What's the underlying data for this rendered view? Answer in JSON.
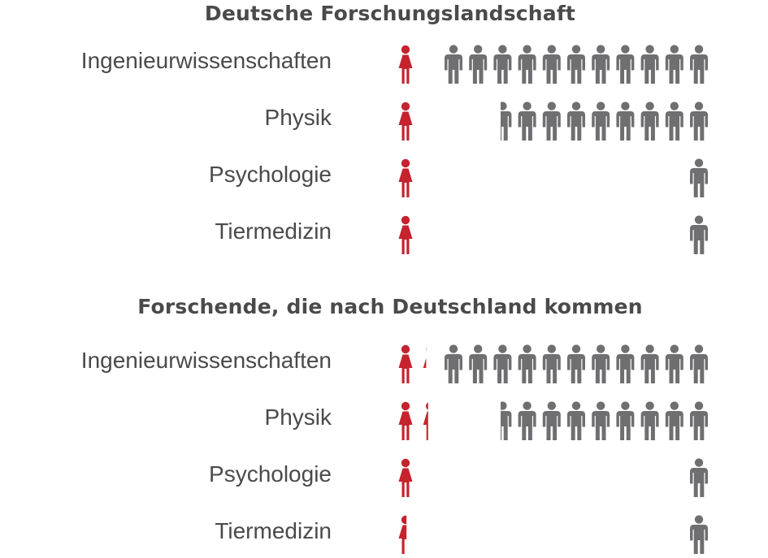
{
  "colors": {
    "female": "#c5232e",
    "male": "#6f6f72",
    "text": "#4a4a4a"
  },
  "chart_data": [
    {
      "type": "pictograph",
      "title": "Deutsche Forschungslandschaft",
      "categories": [
        "Ingenieurwissenschaften",
        "Physik",
        "Psychologie",
        "Tiermedizin"
      ],
      "series": [
        {
          "values": [
            1,
            1,
            1,
            1
          ]
        },
        {
          "values": [
            11,
            8.6,
            1,
            1
          ]
        }
      ]
    },
    {
      "type": "pictograph",
      "title": "Forschende, die nach Deutschland kommen",
      "categories": [
        "Ingenieurwissenschaften",
        "Physik",
        "Psychologie",
        "Tiermedizin"
      ],
      "series": [
        {
          "values": [
            1.3,
            1.4,
            1.1,
            0.55
          ]
        },
        {
          "values": [
            11,
            8.6,
            1,
            1
          ]
        }
      ]
    }
  ]
}
